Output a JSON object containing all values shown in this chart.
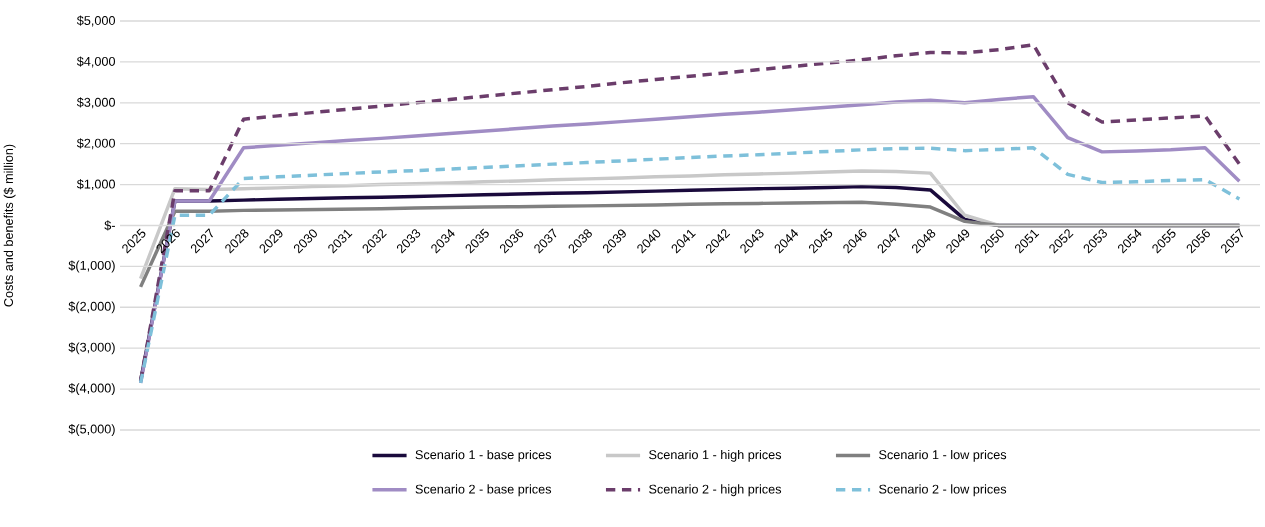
{
  "chart_data": {
    "type": "line",
    "ylabel": "Costs and benefits ($ million)",
    "categories": [
      "2025",
      "2026",
      "2027",
      "2028",
      "2029",
      "2030",
      "2031",
      "2032",
      "2033",
      "2034",
      "2035",
      "2036",
      "2037",
      "2038",
      "2039",
      "2040",
      "2041",
      "2042",
      "2043",
      "2044",
      "2045",
      "2046",
      "2047",
      "2048",
      "2049",
      "2050",
      "2051",
      "2052",
      "2053",
      "2054",
      "2055",
      "2056",
      "2057"
    ],
    "series": [
      {
        "name": "Scenario 1 - base prices",
        "color": "#1a0a3c",
        "line_style": "solid",
        "values": [
          -3800,
          600,
          600,
          620,
          640,
          660,
          680,
          690,
          710,
          730,
          750,
          770,
          790,
          800,
          820,
          840,
          860,
          880,
          900,
          910,
          930,
          950,
          930,
          870,
          150,
          0,
          0,
          0,
          0,
          0,
          0,
          0,
          0
        ]
      },
      {
        "name": "Scenario 1 - high prices",
        "color": "#c8c8c8",
        "line_style": "solid",
        "values": [
          -1300,
          900,
          880,
          900,
          920,
          950,
          970,
          1000,
          1020,
          1040,
          1070,
          1090,
          1120,
          1140,
          1160,
          1190,
          1210,
          1240,
          1260,
          1280,
          1310,
          1330,
          1320,
          1280,
          250,
          0,
          0,
          0,
          0,
          0,
          0,
          0,
          0
        ]
      },
      {
        "name": "Scenario 1 - low prices",
        "color": "#808080",
        "line_style": "solid",
        "values": [
          -1500,
          350,
          350,
          370,
          380,
          390,
          400,
          410,
          430,
          440,
          450,
          460,
          470,
          480,
          490,
          500,
          520,
          530,
          540,
          550,
          560,
          570,
          520,
          450,
          100,
          0,
          0,
          0,
          0,
          0,
          0,
          0,
          0
        ]
      },
      {
        "name": "Scenario 2 - base prices",
        "color": "#a08cc4",
        "line_style": "solid",
        "values": [
          -3850,
          600,
          600,
          1900,
          1960,
          2020,
          2080,
          2130,
          2190,
          2250,
          2310,
          2370,
          2430,
          2480,
          2540,
          2600,
          2660,
          2720,
          2770,
          2830,
          2890,
          2950,
          3020,
          3060,
          3000,
          3080,
          3150,
          2150,
          1800,
          1820,
          1850,
          1900,
          1080
        ]
      },
      {
        "name": "Scenario 2 - high prices",
        "color": "#6b3d6b",
        "line_style": "dashed",
        "values": [
          -3800,
          850,
          850,
          2600,
          2680,
          2760,
          2840,
          2920,
          3000,
          3080,
          3160,
          3240,
          3320,
          3400,
          3490,
          3570,
          3650,
          3730,
          3810,
          3890,
          3970,
          4050,
          4150,
          4230,
          4220,
          4300,
          4420,
          3000,
          2530,
          2580,
          2630,
          2680,
          1500
        ]
      },
      {
        "name": "Scenario 2 - low prices",
        "color": "#7ec0da",
        "line_style": "dashed",
        "values": [
          -3850,
          250,
          250,
          1150,
          1190,
          1230,
          1270,
          1310,
          1340,
          1380,
          1420,
          1460,
          1500,
          1540,
          1580,
          1620,
          1660,
          1700,
          1730,
          1770,
          1810,
          1850,
          1880,
          1890,
          1830,
          1860,
          1900,
          1250,
          1050,
          1070,
          1100,
          1120,
          650
        ]
      }
    ],
    "ylim": [
      -5000,
      5000
    ],
    "yticks": [
      {
        "value": -5000,
        "label": "$(5,000)"
      },
      {
        "value": -4000,
        "label": "$(4,000)"
      },
      {
        "value": -3000,
        "label": "$(3,000)"
      },
      {
        "value": -2000,
        "label": "$(2,000)"
      },
      {
        "value": -1000,
        "label": "$(1,000)"
      },
      {
        "value": 0,
        "label": "$-"
      },
      {
        "value": 1000,
        "label": "$1,000"
      },
      {
        "value": 2000,
        "label": "$2,000"
      },
      {
        "value": 3000,
        "label": "$3,000"
      },
      {
        "value": 4000,
        "label": "$4,000"
      },
      {
        "value": 5000,
        "label": "$5,000"
      }
    ],
    "grid": "y",
    "legend": "bottom",
    "marker": "none"
  }
}
